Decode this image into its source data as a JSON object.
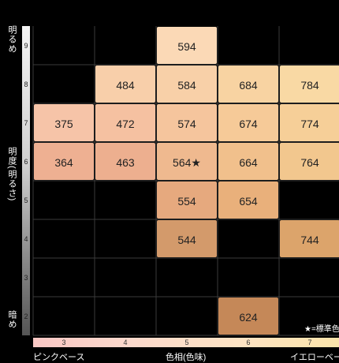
{
  "axis_y": {
    "top_label": "明るめ",
    "middle_label": "明度(明るさ)",
    "bottom_label": "暗め",
    "ticks": [
      "9",
      "8",
      "7",
      "6",
      "5",
      "4",
      "3",
      "2"
    ]
  },
  "axis_x": {
    "left_label": "ピンクベース",
    "middle_label": "色相(色味)",
    "right_label": "イエローベース",
    "ticks": [
      "3",
      "4",
      "5",
      "6",
      "7"
    ]
  },
  "note": "★=標準色",
  "chart_data": {
    "type": "table",
    "cells": [
      {
        "hue": 5,
        "value": 9,
        "code": "594",
        "color": "#fbd9b6"
      },
      {
        "hue": 4,
        "value": 8,
        "code": "484",
        "color": "#f8cfaa"
      },
      {
        "hue": 5,
        "value": 8,
        "code": "584",
        "color": "#f8d0a8"
      },
      {
        "hue": 6,
        "value": 8,
        "code": "684",
        "color": "#f8d3a2"
      },
      {
        "hue": 7,
        "value": 8,
        "code": "784",
        "color": "#f9d9a4"
      },
      {
        "hue": 3,
        "value": 7,
        "code": "375",
        "color": "#f6c4a8"
      },
      {
        "hue": 4,
        "value": 7,
        "code": "472",
        "color": "#f5c1a1"
      },
      {
        "hue": 5,
        "value": 7,
        "code": "574",
        "color": "#f5c59d"
      },
      {
        "hue": 6,
        "value": 7,
        "code": "674",
        "color": "#f6ca98"
      },
      {
        "hue": 7,
        "value": 7,
        "code": "774",
        "color": "#f6cf98"
      },
      {
        "hue": 3,
        "value": 6,
        "code": "364",
        "color": "#eeb092"
      },
      {
        "hue": 4,
        "value": 6,
        "code": "463",
        "color": "#edaf8f"
      },
      {
        "hue": 5,
        "value": 6,
        "code": "564★",
        "color": "#efb98f"
      },
      {
        "hue": 6,
        "value": 6,
        "code": "664",
        "color": "#f1c08c"
      },
      {
        "hue": 7,
        "value": 6,
        "code": "764",
        "color": "#f2c78e"
      },
      {
        "hue": 5,
        "value": 5,
        "code": "554",
        "color": "#e6a97e"
      },
      {
        "hue": 6,
        "value": 5,
        "code": "654",
        "color": "#e9b07b"
      },
      {
        "hue": 5,
        "value": 4,
        "code": "544",
        "color": "#d39a6b"
      },
      {
        "hue": 7,
        "value": 4,
        "code": "744",
        "color": "#dca46b"
      },
      {
        "hue": 6,
        "value": 2,
        "code": "624",
        "color": "#c58858"
      }
    ]
  }
}
